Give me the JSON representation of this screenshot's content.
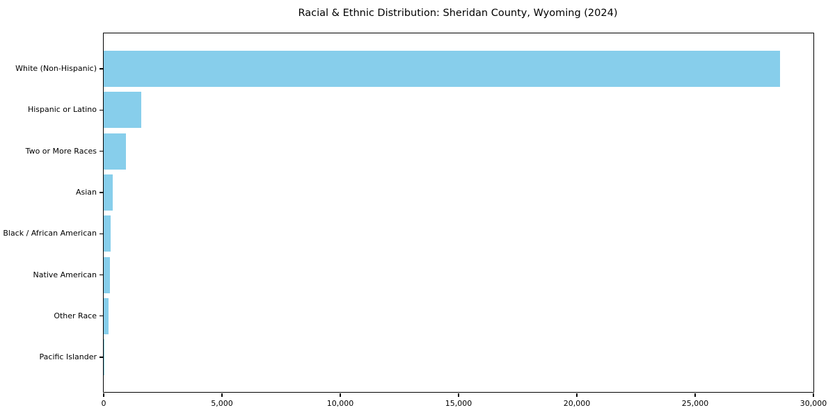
{
  "chart_data": {
    "type": "bar",
    "orientation": "horizontal",
    "title": "Racial & Ethnic Distribution: Sheridan County, Wyoming (2024)",
    "categories": [
      "White (Non-Hispanic)",
      "Hispanic or Latino",
      "Two or More Races",
      "Asian",
      "Black / African American",
      "Native American",
      "Other Race",
      "Pacific Islander"
    ],
    "values": [
      28600,
      1600,
      950,
      380,
      290,
      260,
      200,
      20
    ],
    "xlabel": "",
    "ylabel": "",
    "xlim": [
      0,
      30000
    ],
    "xticks": [
      0,
      5000,
      10000,
      15000,
      20000,
      25000,
      30000
    ],
    "xtick_labels": [
      "0",
      "5,000",
      "10,000",
      "15,000",
      "20,000",
      "25,000",
      "30,000"
    ],
    "bar_color": "#87CEEB",
    "axis_color": "#000000",
    "text_color": "#000000",
    "grid": false,
    "legend": "none"
  }
}
